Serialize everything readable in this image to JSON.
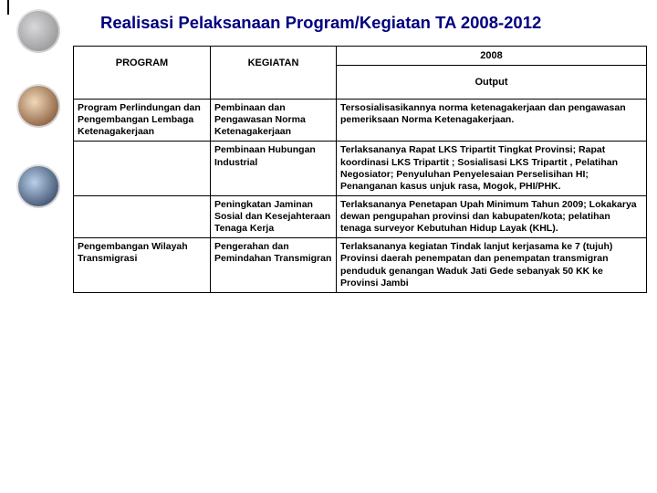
{
  "title": "Realisasi Pelaksanaan Program/Kegiatan TA 2008-2012",
  "year": "2008",
  "headers": {
    "program": "PROGRAM",
    "kegiatan": "KEGIATAN",
    "output": "Output"
  },
  "rows": [
    {
      "program": "Program Perlindungan dan Pengembangan Lembaga Ketenagakerjaan",
      "kegiatan": "Pembinaan dan Pengawasan Norma Ketenagakerjaan",
      "output": "Tersosialisasikannya norma ketenagakerjaan dan pengawasan pemeriksaan Norma Ketenagakerjaan."
    },
    {
      "program": "",
      "kegiatan": "Pembinaan Hubungan Industrial",
      "output": "Terlaksananya Rapat LKS Tripartit Tingkat Provinsi; Rapat koordinasi LKS Tripartit ; Sosialisasi LKS Tripartit , Pelatihan Negosiator; Penyuluhan Penyelesaian Perselisihan HI; Penanganan kasus unjuk rasa, Mogok, PHI/PHK."
    },
    {
      "program": "",
      "kegiatan": "Peningkatan Jaminan Sosial dan Kesejahteraan Tenaga Kerja",
      "output": "Terlaksananya Penetapan Upah Minimum  Tahun 2009; Lokakarya dewan pengupahan provinsi dan kabupaten/kota; pelatihan tenaga surveyor Kebutuhan Hidup Layak (KHL)."
    },
    {
      "program": "Pengembangan Wilayah Transmigrasi",
      "kegiatan": "Pengerahan dan Pemindahan Transmigran",
      "output": "Terlaksananya kegiatan Tindak lanjut kerjasama ke 7 (tujuh) Provinsi  daerah penempatan dan penempatan transmigran penduduk genangan Waduk Jati Gede sebanyak 50 KK ke Provinsi Jambi"
    }
  ]
}
